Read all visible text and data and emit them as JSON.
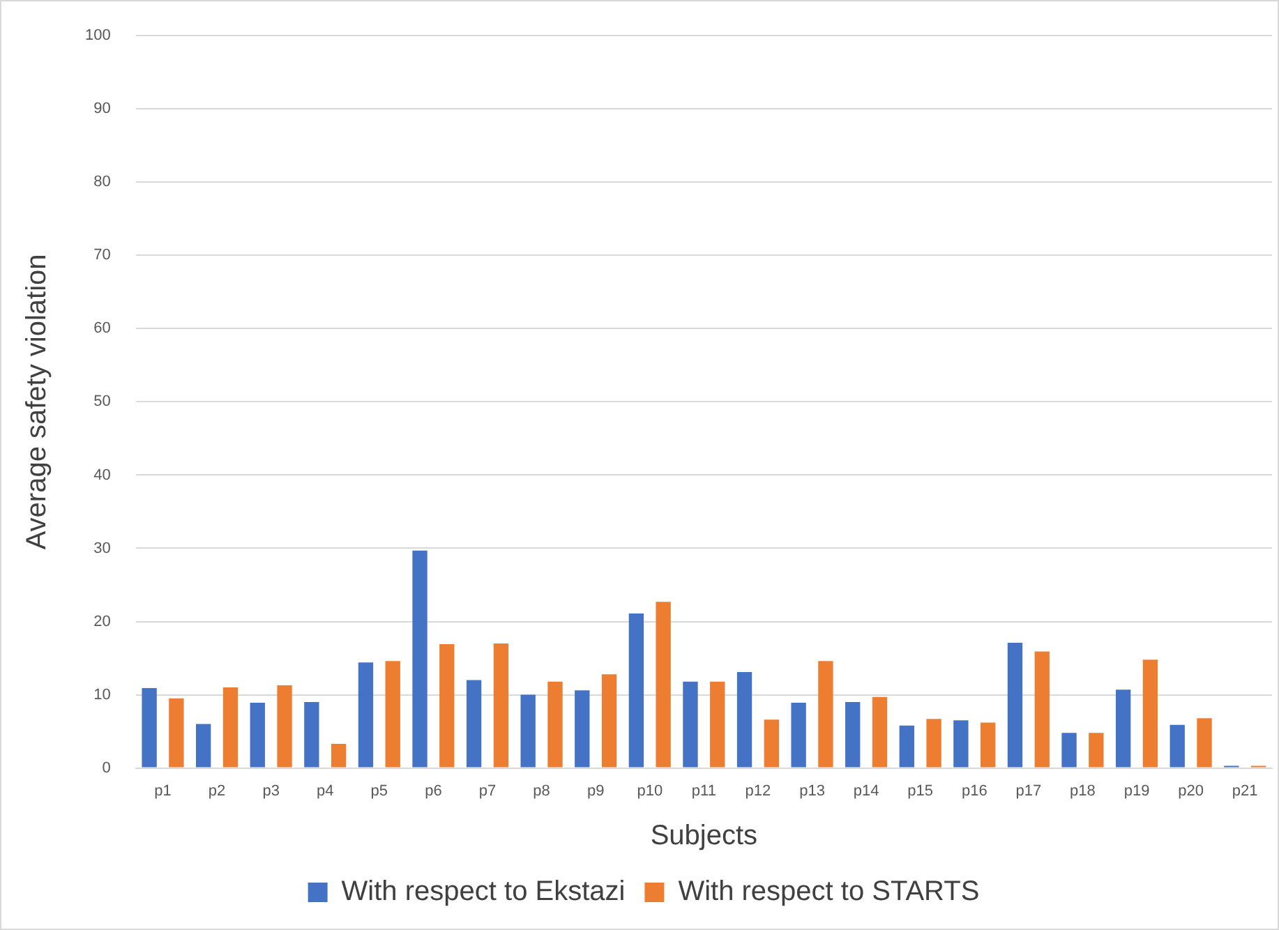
{
  "chart_data": {
    "type": "bar",
    "xlabel": "Subjects",
    "ylabel": "Average safety violation",
    "categories": [
      "p1",
      "p2",
      "p3",
      "p4",
      "p5",
      "p6",
      "p7",
      "p8",
      "p9",
      "p10",
      "p11",
      "p12",
      "p13",
      "p14",
      "p15",
      "p16",
      "p17",
      "p18",
      "p19",
      "p20",
      "p21"
    ],
    "series": [
      {
        "name": "With respect to Ekstazi",
        "color": "#4472c4",
        "values": [
          10.9,
          6,
          8.9,
          9,
          14.4,
          29.7,
          12,
          10,
          10.6,
          21.1,
          11.8,
          13.1,
          8.9,
          9,
          5.8,
          6.5,
          17.1,
          4.8,
          10.7,
          5.9,
          0.3
        ]
      },
      {
        "name": "With respect to STARTS",
        "color": "#ed7d31",
        "values": [
          9.5,
          11,
          11.3,
          3.3,
          14.6,
          16.9,
          17,
          11.8,
          12.8,
          22.7,
          11.8,
          6.6,
          14.6,
          9.7,
          6.7,
          6.2,
          15.9,
          4.8,
          14.8,
          6.8,
          0.3
        ]
      }
    ],
    "ylim": [
      0,
      100
    ],
    "yticks": [
      0,
      10,
      20,
      30,
      40,
      50,
      60,
      70,
      80,
      90,
      100
    ],
    "grid": "y",
    "legend": "bottom"
  }
}
